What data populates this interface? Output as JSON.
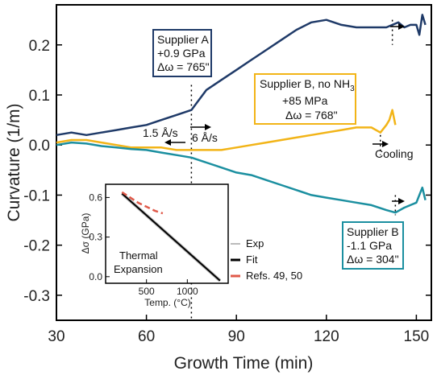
{
  "chart_data": {
    "type": "line",
    "xlabel": "Growth Time (min)",
    "ylabel": "Curvature (1/m)",
    "xlim": [
      30,
      155
    ],
    "ylim": [
      -0.35,
      0.28
    ],
    "xticks": [
      "30",
      "60",
      "90",
      "120",
      "150"
    ],
    "yticks": [
      "0.2",
      "0.1",
      "0.0",
      "-0.1",
      "-0.2",
      "-0.3"
    ],
    "colors": {
      "supplier_a": "#1f3a68",
      "supplier_b_no_nh3": "#f2b417",
      "supplier_b": "#1b8fa0",
      "fit": "#000000",
      "refs": "#e05a4a",
      "exp": "#bbbbbb"
    },
    "series": [
      {
        "color_key": "supplier_a",
        "x": [
          30,
          35,
          40,
          45,
          50,
          55,
          60,
          65,
          70,
          75,
          80,
          85,
          90,
          95,
          100,
          105,
          110,
          115,
          120,
          125,
          130,
          135,
          140,
          142,
          144,
          146,
          148,
          150,
          151,
          152,
          153
        ],
        "y": [
          0.02,
          0.025,
          0.02,
          0.025,
          0.03,
          0.035,
          0.04,
          0.05,
          0.06,
          0.07,
          0.11,
          0.13,
          0.15,
          0.17,
          0.19,
          0.21,
          0.23,
          0.245,
          0.25,
          0.24,
          0.235,
          0.235,
          0.235,
          0.24,
          0.245,
          0.235,
          0.24,
          0.24,
          0.22,
          0.26,
          0.24
        ]
      },
      {
        "color_key": "supplier_b_no_nh3",
        "x": [
          30,
          35,
          40,
          45,
          50,
          55,
          60,
          65,
          70,
          75,
          80,
          85,
          90,
          95,
          100,
          105,
          110,
          115,
          120,
          125,
          130,
          135,
          138,
          140,
          141,
          142,
          143
        ],
        "y": [
          0.005,
          0.01,
          0.01,
          0.005,
          0.0,
          -0.005,
          -0.005,
          -0.005,
          -0.01,
          -0.01,
          -0.01,
          -0.01,
          -0.005,
          0.0,
          0.005,
          0.01,
          0.015,
          0.02,
          0.025,
          0.03,
          0.035,
          0.035,
          0.025,
          0.04,
          0.05,
          0.07,
          0.04
        ]
      },
      {
        "color_key": "supplier_b",
        "x": [
          30,
          35,
          40,
          45,
          50,
          55,
          60,
          65,
          70,
          75,
          80,
          85,
          90,
          95,
          100,
          105,
          110,
          115,
          120,
          125,
          130,
          135,
          140,
          143,
          146,
          148,
          150,
          151,
          152,
          153
        ],
        "y": [
          0.0,
          0.005,
          0.003,
          -0.002,
          -0.005,
          -0.008,
          -0.01,
          -0.015,
          -0.02,
          -0.025,
          -0.035,
          -0.045,
          -0.055,
          -0.06,
          -0.07,
          -0.08,
          -0.09,
          -0.1,
          -0.105,
          -0.11,
          -0.115,
          -0.12,
          -0.13,
          -0.135,
          -0.125,
          -0.12,
          -0.115,
          -0.1,
          -0.085,
          -0.11
        ]
      }
    ],
    "vlines": [
      75,
      142,
      143,
      138
    ],
    "annotations": {
      "box_a": [
        "Supplier A",
        "+0.9 GPa",
        "Δω = 765\""
      ],
      "box_b_no_nh3_line1": "Supplier B, no NH",
      "box_b_no_nh3_sub": "3",
      "box_b_no_nh3_lines": [
        "+85 MPa",
        "Δω = 768\""
      ],
      "box_b": [
        "Supplier B",
        "-1.1 GPa",
        "Δω = 304\""
      ],
      "rate_low": "1.5 Å/s",
      "rate_high": "6 Å/s",
      "cooling": "Cooling"
    },
    "inset": {
      "xlabel": "Temp. (°C)",
      "ylabel": "Δσ (GPa)",
      "xlim": [
        0,
        1500
      ],
      "ylim": [
        -0.05,
        0.7
      ],
      "xticks": [
        "500",
        "1000"
      ],
      "yticks": [
        "0.6",
        "0.3",
        "0.0"
      ],
      "annotation": [
        "Thermal",
        "Expansion"
      ],
      "legend": [
        "Exp",
        "Fit",
        "Refs. 49, 50"
      ],
      "fit": {
        "x": [
          200,
          1400
        ],
        "y": [
          0.63,
          -0.03
        ]
      },
      "exp": {
        "x": [
          200,
          1400
        ],
        "y": [
          0.63,
          -0.03
        ]
      },
      "refs": {
        "x": [
          200,
          300,
          400,
          500,
          600,
          700
        ],
        "y": [
          0.64,
          0.6,
          0.56,
          0.53,
          0.5,
          0.48
        ]
      }
    }
  }
}
